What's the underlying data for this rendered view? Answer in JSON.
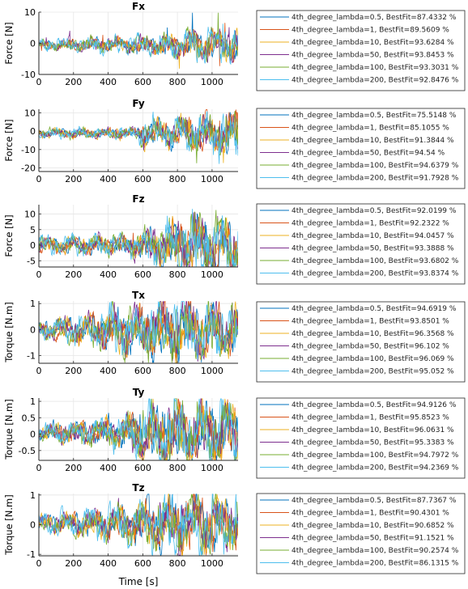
{
  "colors": [
    "#0072bd",
    "#d95319",
    "#edb120",
    "#7e2f8e",
    "#77ac30",
    "#4dbeee"
  ],
  "chart_data": [
    {
      "type": "line",
      "title": "Fx",
      "ylabel": "Force [N]",
      "xlabel": "",
      "xlim": [
        0,
        1150
      ],
      "ylim": [
        -10,
        10
      ],
      "xticks": [
        "0",
        "200",
        "400",
        "600",
        "800",
        "1000"
      ],
      "yticks": [
        "-10",
        "0",
        "10"
      ],
      "amp_profile": [
        [
          0,
          2
        ],
        [
          300,
          3
        ],
        [
          600,
          3.5
        ],
        [
          800,
          5
        ],
        [
          1100,
          7
        ]
      ],
      "offset": -0.5,
      "series": [
        {
          "name": "4th_degree_lambda=0.5, BestFit=87.4332 %"
        },
        {
          "name": "4th_degree_lambda=1, BestFit=89.5609 %"
        },
        {
          "name": "4th_degree_lambda=10, BestFit=93.6284 %"
        },
        {
          "name": "4th_degree_lambda=50, BestFit=93.8453 %"
        },
        {
          "name": "4th_degree_lambda=100, BestFit=93.3031 %"
        },
        {
          "name": "4th_degree_lambda=200, BestFit=92.8476 %"
        }
      ]
    },
    {
      "type": "line",
      "title": "Fy",
      "ylabel": "Force [N]",
      "xlabel": "",
      "xlim": [
        0,
        1150
      ],
      "ylim": [
        -22,
        12
      ],
      "xticks": [
        "0",
        "200",
        "400",
        "600",
        "800",
        "1000"
      ],
      "yticks": [
        "-20",
        "-10",
        "0",
        "10"
      ],
      "amp_profile": [
        [
          0,
          2
        ],
        [
          550,
          2.5
        ],
        [
          600,
          6
        ],
        [
          800,
          7
        ],
        [
          1100,
          10
        ]
      ],
      "offset": -1,
      "series": [
        {
          "name": "4th_degree_lambda=0.5, BestFit=75.5148 %"
        },
        {
          "name": "4th_degree_lambda=1, BestFit=85.1055 %"
        },
        {
          "name": "4th_degree_lambda=10, BestFit=91.3844 %"
        },
        {
          "name": "4th_degree_lambda=50, BestFit=94.54 %"
        },
        {
          "name": "4th_degree_lambda=100, BestFit=94.6379 %"
        },
        {
          "name": "4th_degree_lambda=200, BestFit=91.7928 %"
        }
      ]
    },
    {
      "type": "line",
      "title": "Fz",
      "ylabel": "Force [N]",
      "xlabel": "",
      "xlim": [
        0,
        1150
      ],
      "ylim": [
        -7,
        13
      ],
      "xticks": [
        "0",
        "200",
        "400",
        "600",
        "800",
        "1000"
      ],
      "yticks": [
        "-5",
        "0",
        "5",
        "10"
      ],
      "amp_profile": [
        [
          0,
          1.5
        ],
        [
          500,
          2
        ],
        [
          700,
          4
        ],
        [
          900,
          6
        ],
        [
          1100,
          5
        ]
      ],
      "offset": 0,
      "series": [
        {
          "name": "4th_degree_lambda=0.5, BestFit=92.0199 %"
        },
        {
          "name": "4th_degree_lambda=1, BestFit=92.2322 %"
        },
        {
          "name": "4th_degree_lambda=10, BestFit=94.0457 %"
        },
        {
          "name": "4th_degree_lambda=50, BestFit=93.3888 %"
        },
        {
          "name": "4th_degree_lambda=100, BestFit=93.6802 %"
        },
        {
          "name": "4th_degree_lambda=200, BestFit=93.8374 %"
        }
      ]
    },
    {
      "type": "line",
      "title": "Tx",
      "ylabel": "Torque [N.m]",
      "xlabel": "",
      "xlim": [
        0,
        1150
      ],
      "ylim": [
        -1.3,
        1.1
      ],
      "xticks": [
        "0",
        "200",
        "400",
        "600",
        "800",
        "1000"
      ],
      "yticks": [
        "-1",
        "0",
        "1"
      ],
      "amp_profile": [
        [
          0,
          0.15
        ],
        [
          300,
          0.3
        ],
        [
          600,
          0.5
        ],
        [
          800,
          0.6
        ],
        [
          1100,
          0.5
        ]
      ],
      "offset": 0,
      "series": [
        {
          "name": "4th_degree_lambda=0.5, BestFit=94.6919 %"
        },
        {
          "name": "4th_degree_lambda=1, BestFit=93.8501 %"
        },
        {
          "name": "4th_degree_lambda=10, BestFit=96.3568 %"
        },
        {
          "name": "4th_degree_lambda=50, BestFit=96.102 %"
        },
        {
          "name": "4th_degree_lambda=100, BestFit=96.069 %"
        },
        {
          "name": "4th_degree_lambda=200, BestFit=95.052 %"
        }
      ]
    },
    {
      "type": "line",
      "title": "Ty",
      "ylabel": "Torque [N.m]",
      "xlabel": "",
      "xlim": [
        0,
        1150
      ],
      "ylim": [
        -0.8,
        1.1
      ],
      "xticks": [
        "0",
        "200",
        "400",
        "600",
        "800",
        "1000"
      ],
      "yticks": [
        "-0.5",
        "0",
        "0.5",
        "1"
      ],
      "amp_profile": [
        [
          0,
          0.1
        ],
        [
          500,
          0.2
        ],
        [
          600,
          0.35
        ],
        [
          800,
          0.4
        ],
        [
          1100,
          0.35
        ]
      ],
      "offset": 0.05,
      "series": [
        {
          "name": "4th_degree_lambda=0.5, BestFit=94.9126 %"
        },
        {
          "name": "4th_degree_lambda=1, BestFit=95.8523 %"
        },
        {
          "name": "4th_degree_lambda=10, BestFit=96.0631 %"
        },
        {
          "name": "4th_degree_lambda=50, BestFit=95.3383 %"
        },
        {
          "name": "4th_degree_lambda=100, BestFit=94.7972 %"
        },
        {
          "name": "4th_degree_lambda=200, BestFit=94.2369 %"
        }
      ]
    },
    {
      "type": "line",
      "title": "Tz",
      "ylabel": "Torque [N.m]",
      "xlabel": "Time [s]",
      "xlim": [
        0,
        1150
      ],
      "ylim": [
        -1.05,
        1.05
      ],
      "xticks": [
        "0",
        "200",
        "400",
        "600",
        "800",
        "1000"
      ],
      "yticks": [
        "-1",
        "0",
        "1"
      ],
      "amp_profile": [
        [
          0,
          0.1
        ],
        [
          300,
          0.15
        ],
        [
          600,
          0.25
        ],
        [
          800,
          0.35
        ],
        [
          1100,
          0.3
        ]
      ],
      "offset": 0.05,
      "series": [
        {
          "name": "4th_degree_lambda=0.5, BestFit=87.7367 %"
        },
        {
          "name": "4th_degree_lambda=1, BestFit=90.4301 %"
        },
        {
          "name": "4th_degree_lambda=10, BestFit=90.6852 %"
        },
        {
          "name": "4th_degree_lambda=50, BestFit=91.1521 %"
        },
        {
          "name": "4th_degree_lambda=100, BestFit=90.2574 %"
        },
        {
          "name": "4th_degree_lambda=200, BestFit=86.1315 %"
        }
      ]
    }
  ]
}
